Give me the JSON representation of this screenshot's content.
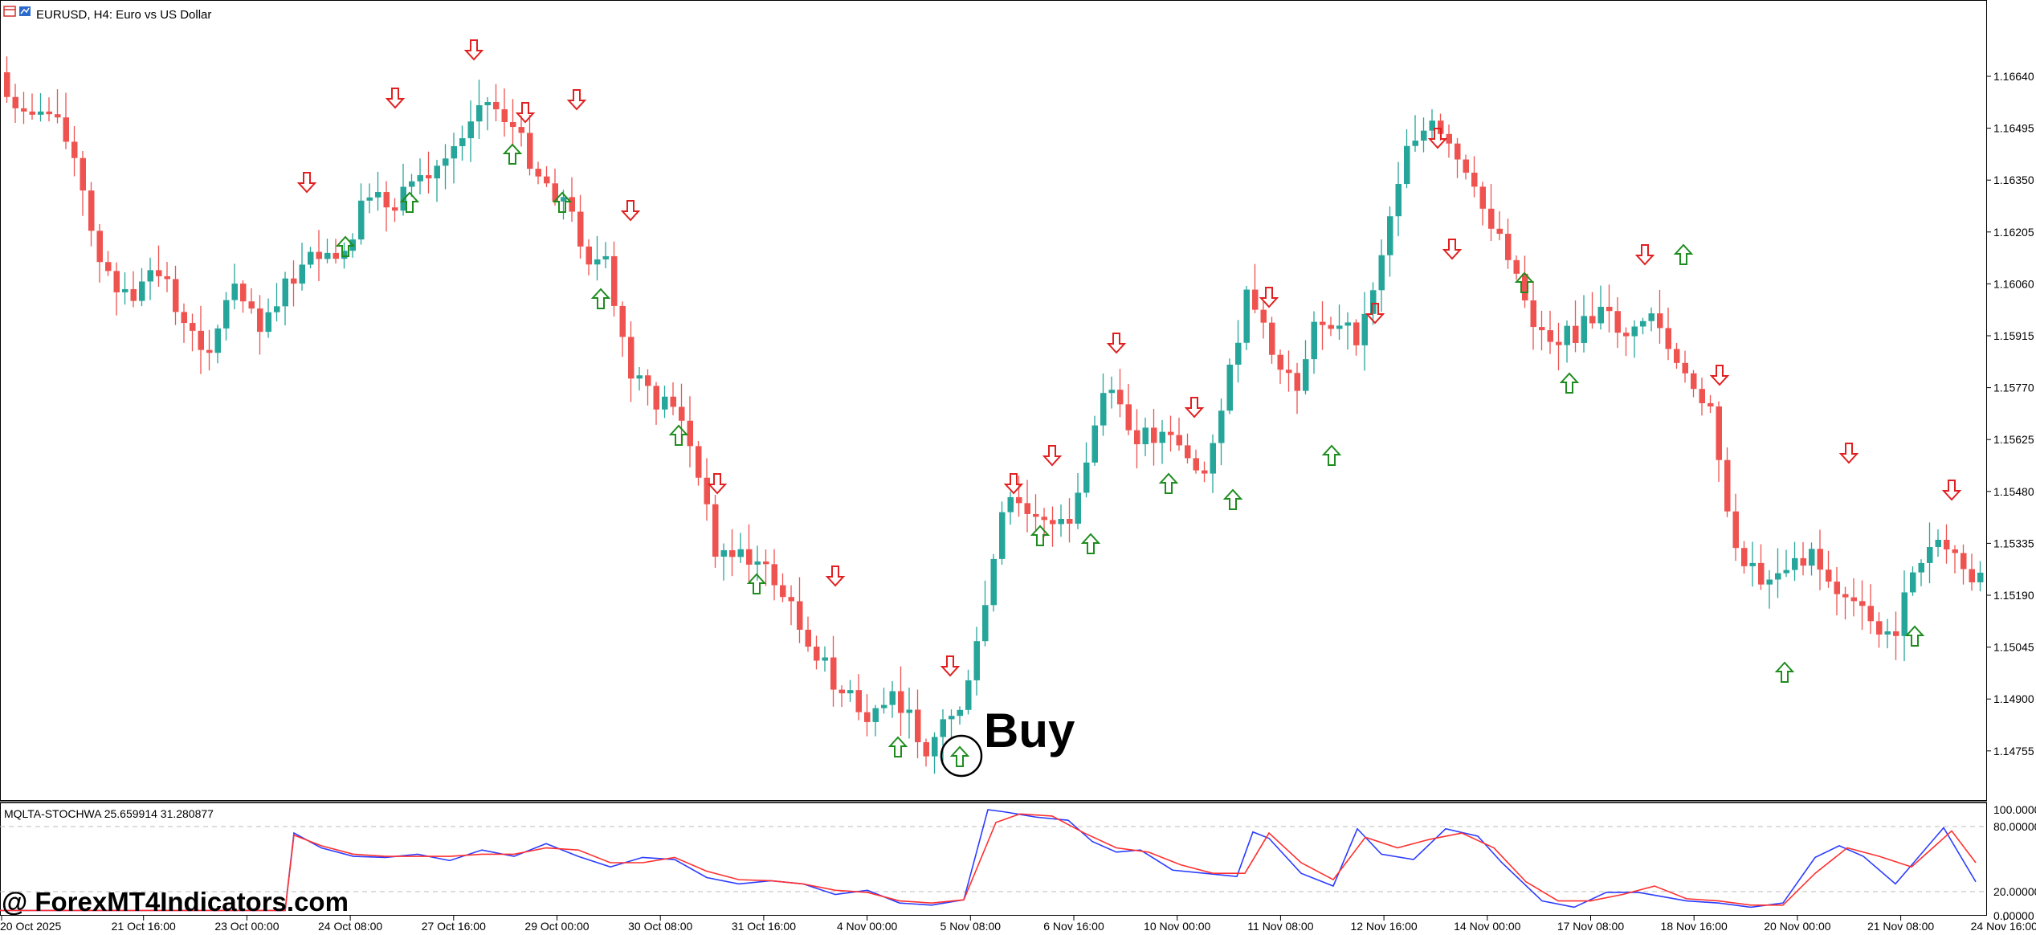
{
  "header": {
    "symbol_title": "EURUSD, H4:  Euro vs US Dollar",
    "icon": "chart-window-icon"
  },
  "price_axis": {
    "labels": [
      "1.16640",
      "1.16495",
      "1.16350",
      "1.16205",
      "1.16060",
      "1.15915",
      "1.15770",
      "1.15625",
      "1.15480",
      "1.15335",
      "1.15190",
      "1.15045",
      "1.14900",
      "1.14755"
    ]
  },
  "time_axis": {
    "labels": [
      "20 Oct 2025",
      "21 Oct 16:00",
      "23 Oct 00:00",
      "24 Oct 08:00",
      "27 Oct 16:00",
      "29 Oct 00:00",
      "30 Oct 08:00",
      "31 Oct 16:00",
      "4 Nov 00:00",
      "5 Nov 08:00",
      "6 Nov 16:00",
      "10 Nov 00:00",
      "11 Nov 08:00",
      "12 Nov 16:00",
      "14 Nov 00:00",
      "17 Nov 08:00",
      "18 Nov 16:00",
      "20 Nov 00:00",
      "21 Nov 08:00",
      "24 Nov 16:00"
    ]
  },
  "indicator": {
    "title": "MQLTA-STOCHWA 25.659914 31.280877",
    "levels": [
      "100.00000",
      "80.00000",
      "20.00000",
      "0.00000"
    ],
    "main_color": "#2b3cff",
    "signal_color": "#ff3030"
  },
  "annotation": {
    "text": "Buy"
  },
  "watermark": "@ ForexMT4Indicators.com",
  "colors": {
    "bull": "#26a69a",
    "bear": "#ef5350",
    "buy_arrow": "#1e8c1e",
    "sell_arrow": "#e02020"
  },
  "chart_data": {
    "type": "candlestick",
    "symbol": "EURUSD",
    "timeframe": "H4",
    "ylim": [
      1.1468,
      1.1674
    ],
    "arrows": {
      "buy": [
        {
          "near": "24 Oct"
        },
        {
          "near": "27 Oct"
        },
        {
          "near": "28 Oct"
        },
        {
          "near": "29 Oct"
        },
        {
          "near": "30 Oct"
        },
        {
          "near": "31 Oct"
        },
        {
          "near": "3 Nov"
        },
        {
          "near": "4 Nov"
        },
        {
          "near": "5 Nov"
        },
        {
          "near": "6 Nov"
        },
        {
          "near": "7 Nov"
        },
        {
          "near": "10 Nov"
        },
        {
          "near": "11 Nov"
        },
        {
          "near": "12 Nov"
        },
        {
          "near": "13 Nov"
        },
        {
          "near": "17 Nov"
        },
        {
          "near": "18 Nov"
        },
        {
          "near": "20 Nov"
        },
        {
          "near": "21 Nov"
        }
      ],
      "sell": [
        {
          "near": "24 Oct"
        },
        {
          "near": "27 Oct"
        },
        {
          "near": "28 Oct"
        },
        {
          "near": "29 Oct"
        },
        {
          "near": "30 Oct"
        },
        {
          "near": "31 Oct"
        },
        {
          "near": "3 Nov"
        },
        {
          "near": "5 Nov"
        },
        {
          "near": "6 Nov"
        },
        {
          "near": "7 Nov"
        },
        {
          "near": "10 Nov"
        },
        {
          "near": "11 Nov"
        },
        {
          "near": "13 Nov"
        },
        {
          "near": "14 Nov"
        },
        {
          "near": "18 Nov"
        },
        {
          "near": "19 Nov"
        },
        {
          "near": "21 Nov"
        },
        {
          "near": "24 Nov"
        }
      ]
    }
  }
}
